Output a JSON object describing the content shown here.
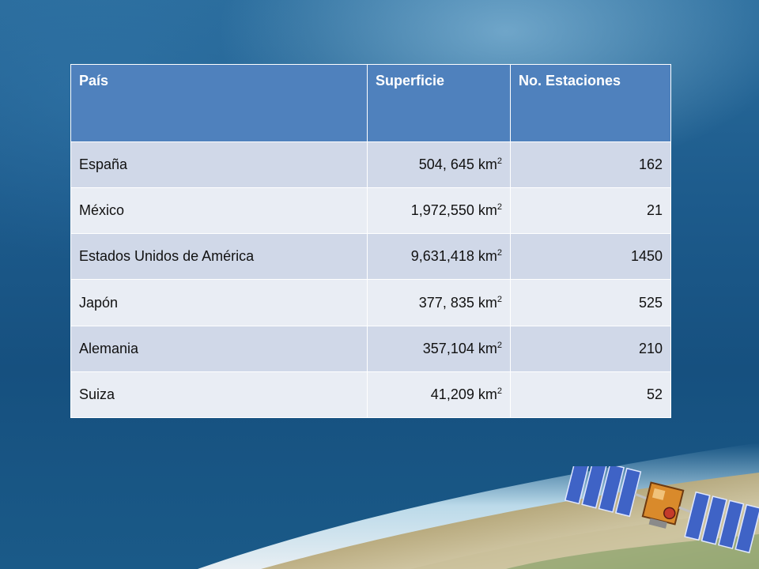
{
  "table": {
    "headers": [
      "País",
      "Superficie",
      "No. Estaciones"
    ],
    "unit": "km",
    "unit_exp": "2",
    "rows": [
      {
        "pais": "España",
        "superficie": "504, 645",
        "estaciones": "162"
      },
      {
        "pais": "México",
        "superficie": "1,972,550",
        "estaciones": "21"
      },
      {
        "pais": "Estados Unidos de América",
        "superficie": "9,631,418",
        "estaciones": "1450"
      },
      {
        "pais": "Japón",
        "superficie": "377, 835",
        "estaciones": "525"
      },
      {
        "pais": "Alemania",
        "superficie": "357,104",
        "estaciones": "210"
      },
      {
        "pais": "Suiza",
        "superficie": "41,209",
        "estaciones": "52"
      }
    ]
  },
  "colors": {
    "header_bg": "#4f81bd",
    "row_dark": "#d0d8e8",
    "row_light": "#e9edf4",
    "background": "#1d5b8c"
  },
  "decor": {
    "earth_icon": "earth-horizon-icon",
    "satellite_icon": "satellite-icon"
  }
}
